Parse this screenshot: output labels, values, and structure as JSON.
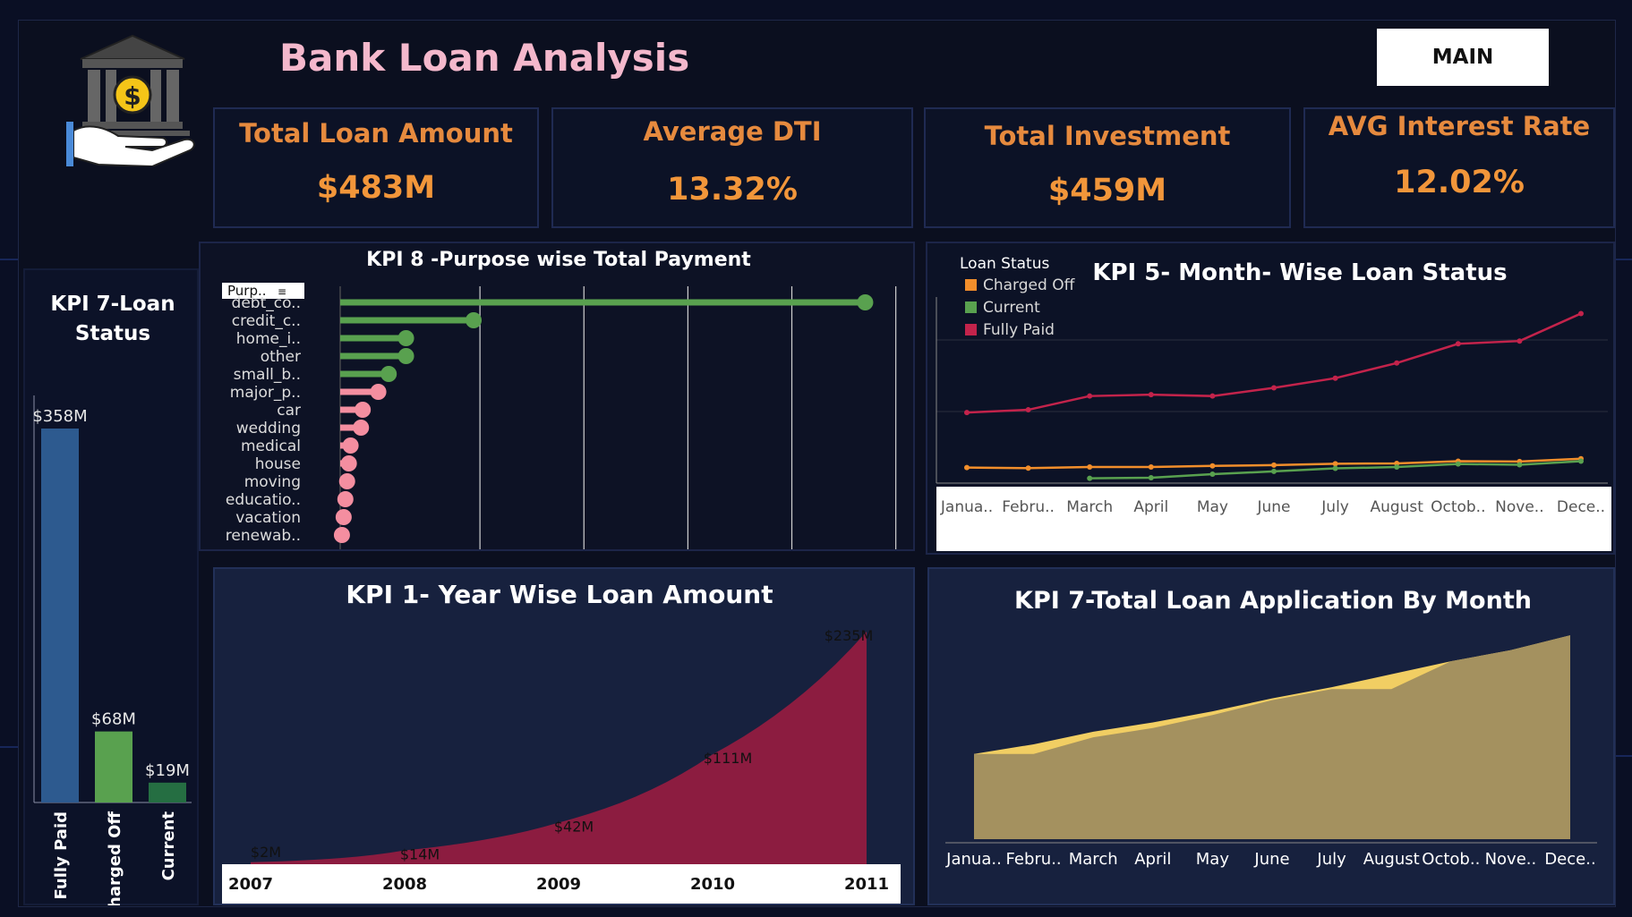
{
  "header": {
    "title": "Bank Loan Analysis",
    "main_button": "MAIN",
    "logo_icon": "bank-dollar-hand-icon"
  },
  "kpis": [
    {
      "label": "Total Loan Amount",
      "value": "$483M"
    },
    {
      "label": "Average DTI",
      "value": "13.32%"
    },
    {
      "label": "Total Investment",
      "value": "$459M"
    },
    {
      "label": "AVG Interest Rate",
      "value": "12.02%"
    }
  ],
  "colors": {
    "accent_orange": "#f2963a",
    "title_pink": "#f4b8cc",
    "green": "#59a14f",
    "pink": "#f48ea0",
    "crimson": "#c3234b",
    "status_blue": "#2d5a8f",
    "area_tan": "#a4915f",
    "area_yellow": "#f1ce63"
  },
  "charts": {
    "loan_status": {
      "title_line1": "KPI 7-Loan",
      "title_line2": "Status",
      "chart_data": {
        "type": "bar",
        "categories": [
          "Fully Paid",
          "Charged Off",
          "Current"
        ],
        "values": [
          358,
          68,
          19
        ],
        "labels": [
          "$358M",
          "$68M",
          "$19M"
        ],
        "colors": [
          "#2d5a8f",
          "#59a14f",
          "#256e42"
        ]
      }
    },
    "purpose": {
      "title": "KPI 8 -Purpose wise Total Payment",
      "filter_label": "Purp..",
      "chart_data": {
        "type": "bar",
        "categories": [
          "debt_co..",
          "credit_c..",
          "home_i..",
          "other",
          "small_b..",
          "major_p..",
          "car",
          "wedding",
          "medical",
          "house",
          "moving",
          "educatio..",
          "vacation",
          "renewab.."
        ],
        "values": [
          303,
          77,
          38,
          38,
          28,
          22,
          13,
          12,
          6,
          5,
          4,
          3,
          2,
          1
        ],
        "colors": [
          "green",
          "green",
          "green",
          "green",
          "green",
          "pink",
          "pink",
          "pink",
          "pink",
          "pink",
          "pink",
          "pink",
          "pink",
          "pink"
        ],
        "xlim": [
          0,
          310
        ]
      }
    },
    "month_status": {
      "title": "KPI 5- Month- Wise Loan Status",
      "legend_title": "Loan Status",
      "chart_data": {
        "type": "line",
        "x": [
          "Janua..",
          "Febru..",
          "March",
          "April",
          "May",
          "June",
          "July",
          "August",
          "Octob..",
          "Nove..",
          "Dece.."
        ],
        "series": [
          {
            "name": "Charged Off",
            "color": "#f28e2b",
            "values": [
              500,
              480,
              520,
              520,
              560,
              590,
              640,
              650,
              730,
              720,
              820
            ]
          },
          {
            "name": "Current",
            "color": "#59a14f",
            "values": [
              null,
              null,
              110,
              130,
              260,
              360,
              470,
              520,
              630,
              600,
              730
            ]
          },
          {
            "name": "Fully Paid",
            "color": "#c3234b",
            "values": [
              2500,
              2600,
              3100,
              3150,
              3100,
              3400,
              3750,
              4300,
              5000,
              5100,
              6100
            ]
          }
        ],
        "ylim": [
          0,
          6700
        ]
      }
    },
    "year_amount": {
      "title": "KPI 1- Year Wise Loan Amount",
      "chart_data": {
        "type": "area",
        "x": [
          "2007",
          "2008",
          "2009",
          "2010",
          "2011"
        ],
        "values": [
          2,
          14,
          42,
          111,
          235
        ],
        "labels": [
          "$2M",
          "$14M",
          "$42M",
          "$111M",
          "$235M"
        ],
        "ylim": [
          0,
          235
        ],
        "color": "#8c1c40"
      }
    },
    "applications": {
      "title": "KPI 7-Total Loan Application By Month",
      "chart_data": {
        "type": "area",
        "x": [
          "Janua..",
          "Febru..",
          "March",
          "April",
          "May",
          "June",
          "July",
          "August",
          "Octob..",
          "Nove..",
          "Dece.."
        ],
        "series": [
          {
            "name": "",
            "color": "#f1ce63",
            "values": [
              2300,
              2560,
              2900,
              3150,
              3450,
              3800,
              4100,
              4450,
              4800,
              5100,
              5500
            ]
          },
          {
            "name": "",
            "color": "#a4915f",
            "values": [
              2300,
              2300,
              2750,
              3000,
              3350,
              3750,
              4050,
              4050,
              4800,
              5100,
              5500
            ]
          }
        ],
        "ylim": [
          0,
          5600
        ]
      }
    }
  }
}
